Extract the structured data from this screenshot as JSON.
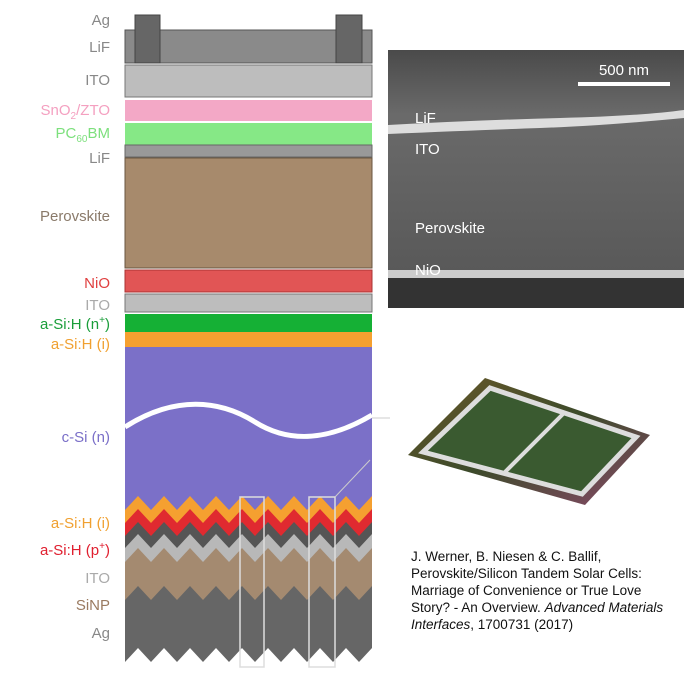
{
  "stack_labels": [
    {
      "parts": [
        "Ag"
      ]
    },
    {
      "parts": [
        "LiF"
      ]
    },
    {
      "parts": [
        "ITO"
      ]
    },
    {
      "parts": [
        "SnO",
        "2",
        "/ZTO"
      ]
    },
    {
      "parts": [
        "PC",
        "60",
        "BM"
      ]
    },
    {
      "parts": [
        "LiF"
      ]
    },
    {
      "parts": [
        "Perovskite"
      ]
    },
    {
      "parts": [
        "NiO"
      ]
    },
    {
      "parts": [
        "ITO"
      ]
    },
    {
      "parts": [
        "a-Si:H (n",
        "+",
        ")"
      ]
    },
    {
      "parts": [
        "a-Si:H (i)"
      ]
    },
    {
      "parts": [
        "c-Si (n)"
      ]
    },
    {
      "parts": [
        "a-Si:H (i)"
      ]
    },
    {
      "parts": [
        "a-Si:H (p",
        "+",
        ")"
      ]
    },
    {
      "parts": [
        "ITO"
      ]
    },
    {
      "parts": [
        "SiNP"
      ]
    },
    {
      "parts": [
        "Ag"
      ]
    }
  ],
  "sem": {
    "scale": "500 nm",
    "labels": [
      "LiF",
      "ITO",
      "Perovskite",
      "NiO"
    ]
  },
  "citation": {
    "authors": "J. Werner, B. Niesen & C. Ballif,",
    "title": "Perovskite/Silicon Tandem Solar Cells: Marriage of Convenience or True Love Story? - An Overview.",
    "journal": "Advanced Materials Interfaces",
    "rest": ", 1700731 (2017)"
  }
}
